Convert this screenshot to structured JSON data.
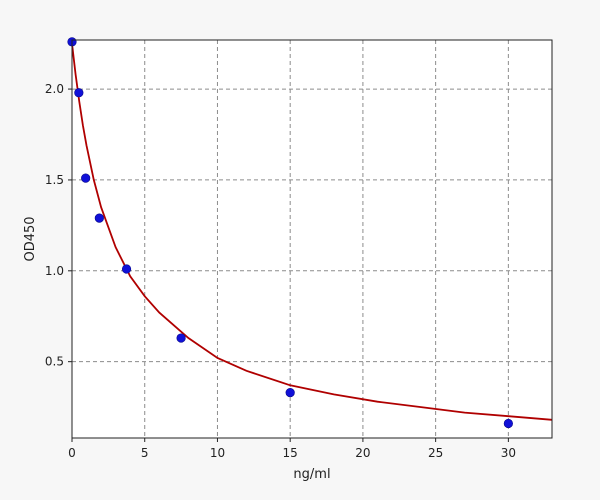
{
  "chart_data": {
    "type": "scatter",
    "xlabel": "ng/ml",
    "ylabel": "OD450",
    "xlim": [
      0,
      33
    ],
    "ylim": [
      0.08,
      2.27
    ],
    "xticks": [
      0,
      5,
      10,
      15,
      20,
      25,
      30
    ],
    "yticks": [
      0.5,
      1.0,
      1.5,
      2.0
    ],
    "x_tick_labels": [
      "0",
      "5",
      "10",
      "15",
      "20",
      "25",
      "30"
    ],
    "y_tick_labels": [
      "0.5",
      "1.0",
      "1.5",
      "2.0"
    ],
    "grid": true,
    "series": [
      {
        "kind": "points",
        "color": "#1010d8",
        "x": [
          0,
          0.47,
          0.94,
          1.88,
          3.75,
          7.5,
          15,
          30
        ],
        "y": [
          2.26,
          1.98,
          1.51,
          1.29,
          1.01,
          0.63,
          0.33,
          0.16
        ]
      },
      {
        "kind": "fit-curve",
        "color": "#b00000",
        "x": [
          0,
          0.25,
          0.5,
          0.75,
          1,
          1.5,
          2,
          3,
          4,
          5,
          6,
          8,
          10,
          12,
          15,
          18,
          21,
          24,
          27,
          30,
          33
        ],
        "y": [
          2.25,
          2.08,
          1.93,
          1.8,
          1.69,
          1.5,
          1.35,
          1.13,
          0.97,
          0.86,
          0.77,
          0.63,
          0.52,
          0.45,
          0.37,
          0.32,
          0.28,
          0.25,
          0.22,
          0.2,
          0.18
        ]
      }
    ]
  }
}
